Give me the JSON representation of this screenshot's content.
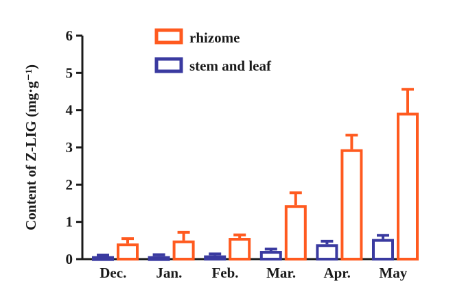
{
  "colors": {
    "rhizome": "#ff5a1f",
    "stem_and_leaf": "#3a3aa0",
    "axis": "#1a1a1a",
    "background": "#ffffff"
  },
  "chart_data": {
    "type": "bar",
    "title": "",
    "xlabel": "",
    "ylabel": "Content of Z-LIG (mg·g⁻¹)",
    "ylim": [
      0,
      6
    ],
    "yticks": [
      "0",
      "1",
      "2",
      "3",
      "4",
      "5",
      "6"
    ],
    "categories": [
      "Dec.",
      "Jan.",
      "Feb.",
      "Mar.",
      "Apr.",
      "May"
    ],
    "series": [
      {
        "name": "stem and leaf",
        "color": "#3a3aa0",
        "values": [
          0.08,
          0.08,
          0.1,
          0.22,
          0.4,
          0.54
        ],
        "errors": [
          0.03,
          0.04,
          0.04,
          0.05,
          0.08,
          0.1
        ]
      },
      {
        "name": "rhizome",
        "color": "#ff5a1f",
        "values": [
          0.42,
          0.5,
          0.57,
          1.45,
          2.95,
          3.93
        ],
        "errors": [
          0.13,
          0.22,
          0.08,
          0.33,
          0.38,
          0.63
        ]
      }
    ],
    "legend": {
      "placement": "top",
      "order": [
        "rhizome",
        "stem and leaf"
      ]
    },
    "grid": false,
    "error_bars": "upper only"
  }
}
